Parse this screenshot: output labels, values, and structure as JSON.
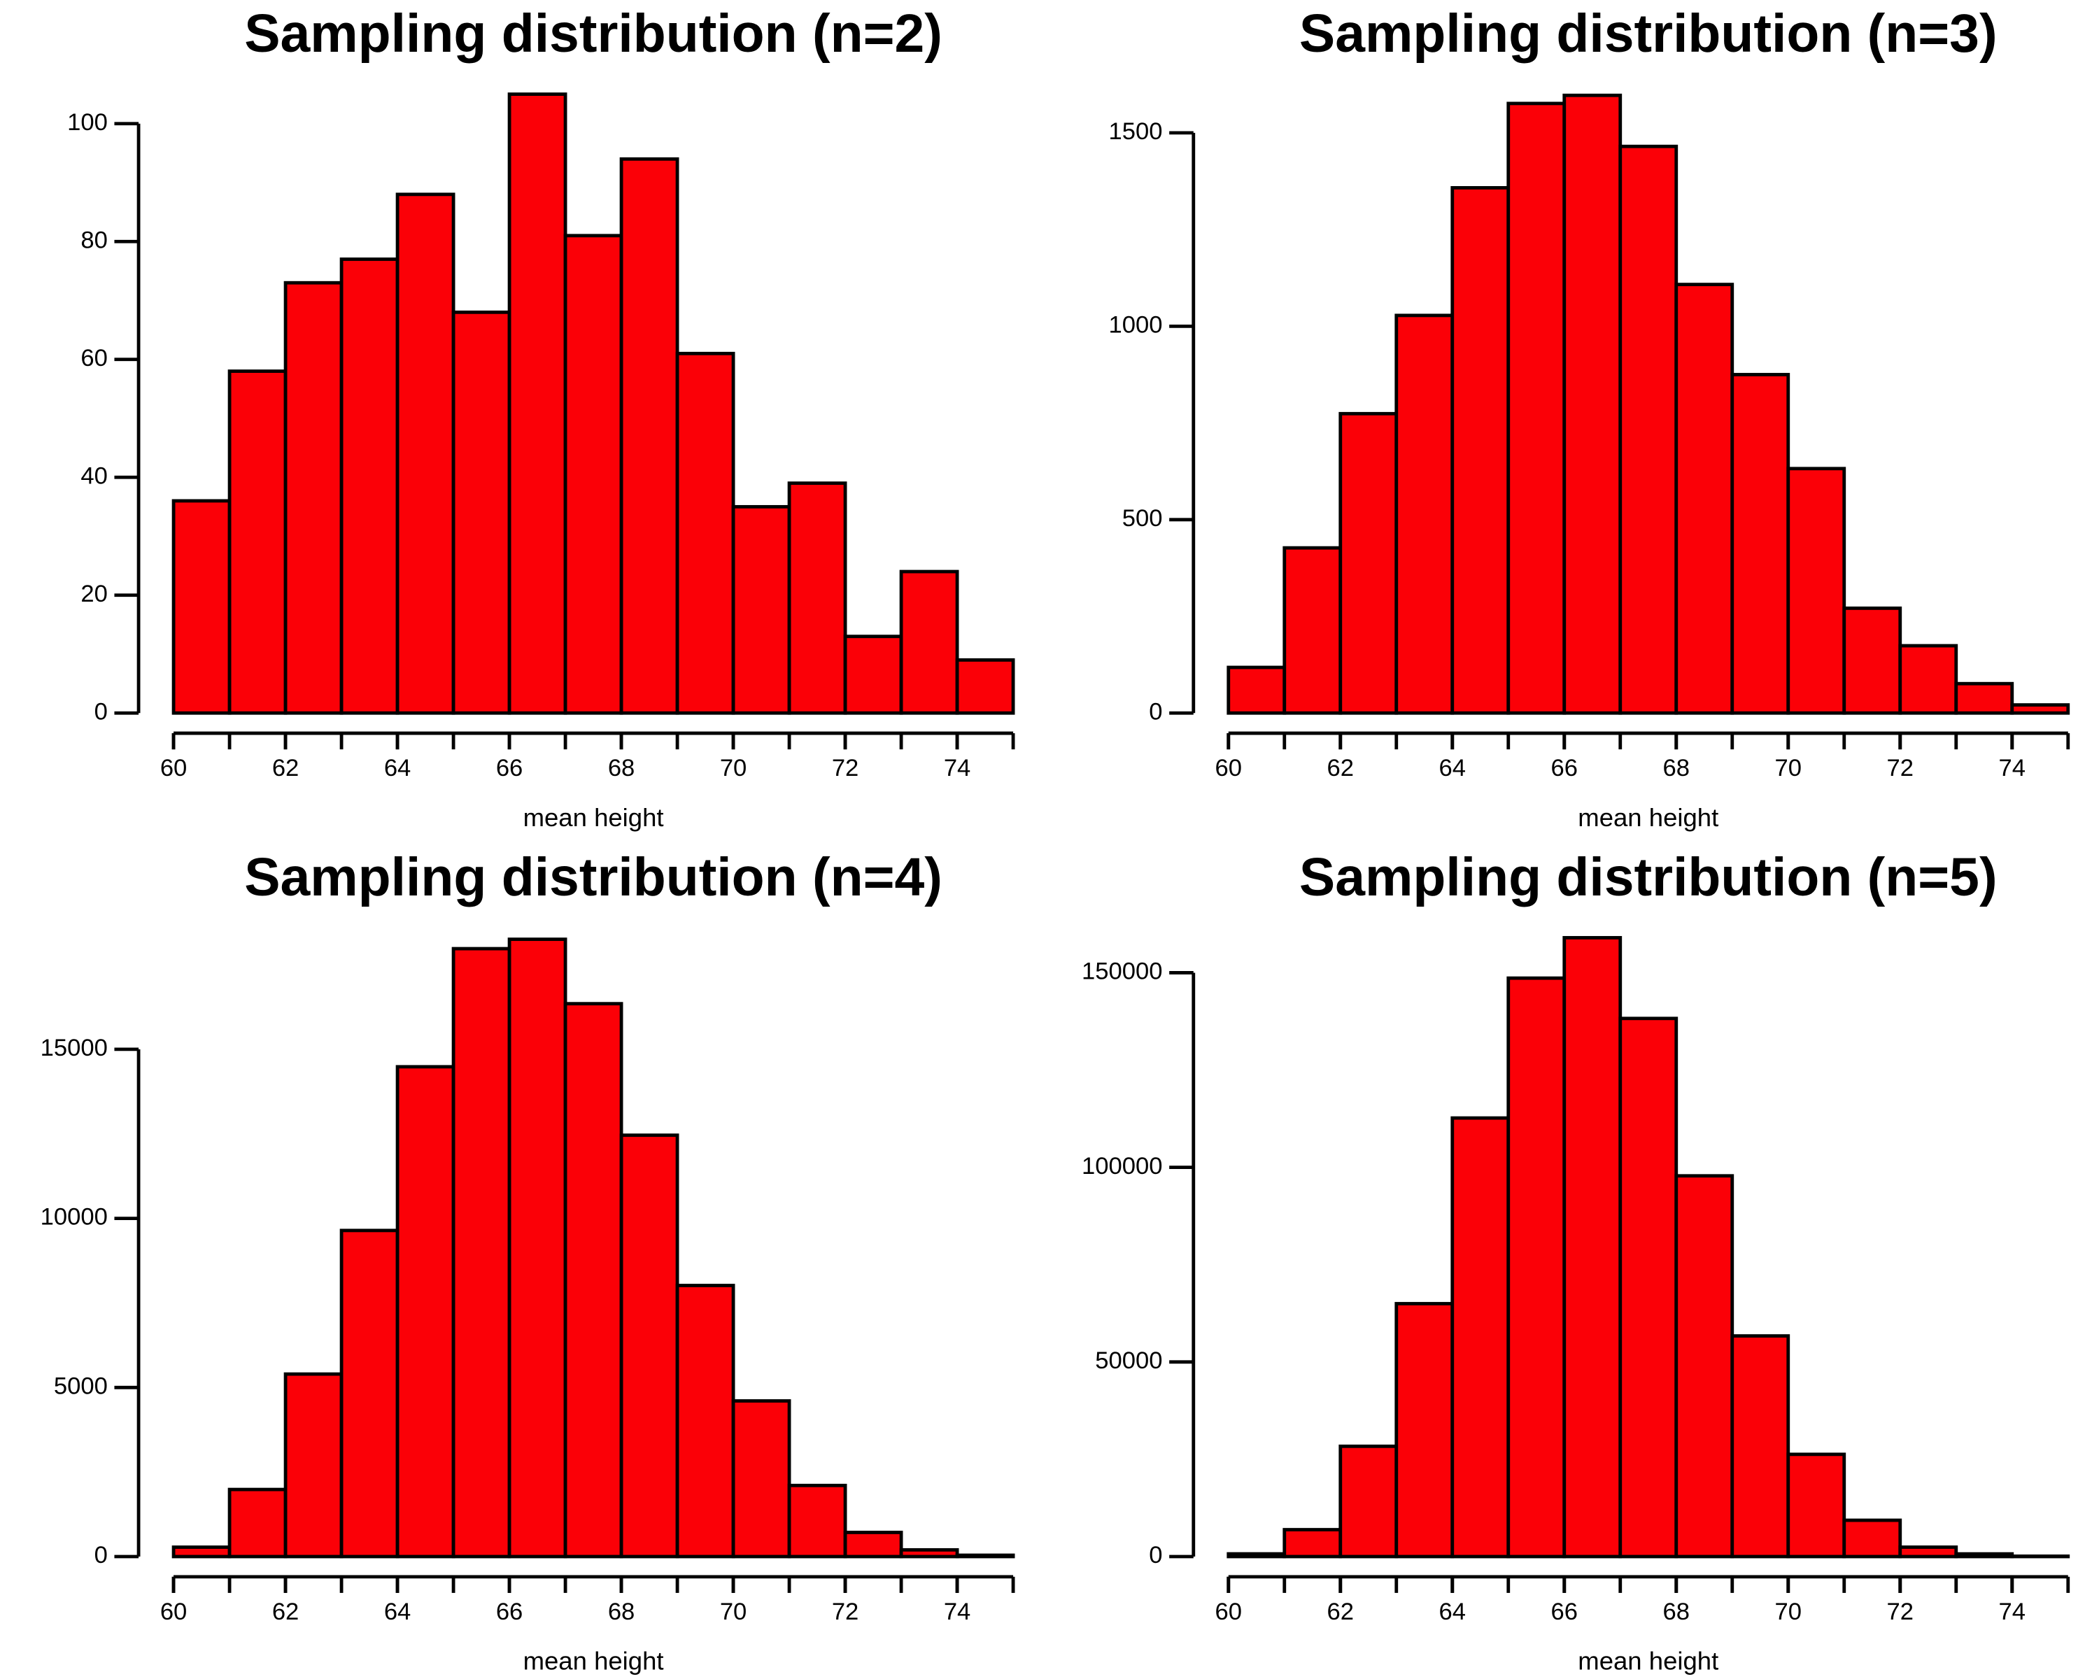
{
  "chart_data": [
    {
      "type": "histogram",
      "title": "Sampling distribution (n=2)",
      "xlabel": "mean height",
      "color": "#fb0007",
      "bins": [
        60,
        61,
        62,
        63,
        64,
        65,
        66,
        67,
        68,
        69,
        70,
        71,
        72,
        73,
        74,
        75
      ],
      "values": [
        36,
        58,
        73,
        77,
        88,
        68,
        105,
        81,
        94,
        61,
        35,
        39,
        13,
        24,
        9
      ],
      "xlim": [
        60,
        75
      ],
      "ylim": [
        0,
        105
      ],
      "xticks": [
        60,
        62,
        64,
        66,
        68,
        70,
        72,
        74
      ],
      "yticks": [
        0,
        20,
        40,
        60,
        80,
        100
      ]
    },
    {
      "type": "histogram",
      "title": "Sampling distribution (n=3)",
      "xlabel": "mean height",
      "color": "#fb0007",
      "bins": [
        60,
        61,
        62,
        63,
        64,
        65,
        66,
        67,
        68,
        69,
        70,
        71,
        72,
        73,
        74,
        75
      ],
      "values": [
        118,
        427,
        774,
        1028,
        1358,
        1576,
        1597,
        1465,
        1108,
        875,
        632,
        271,
        174,
        76,
        21
      ],
      "xlim": [
        60,
        75
      ],
      "ylim": [
        0,
        1600
      ],
      "xticks": [
        60,
        62,
        64,
        66,
        68,
        70,
        72,
        74
      ],
      "yticks": [
        0,
        500,
        1000,
        1500
      ]
    },
    {
      "type": "histogram",
      "title": "Sampling distribution (n=4)",
      "xlabel": "mean height",
      "color": "#fb0007",
      "bins": [
        60,
        61,
        62,
        63,
        64,
        65,
        66,
        67,
        68,
        69,
        70,
        71,
        72,
        73,
        74,
        75
      ],
      "values": [
        278,
        1984,
        5397,
        9643,
        14484,
        17976,
        18254,
        16349,
        12460,
        8016,
        4603,
        2103,
        714,
        198,
        40
      ],
      "xlim": [
        60,
        75
      ],
      "ylim": [
        0,
        18300
      ],
      "xticks": [
        60,
        62,
        64,
        66,
        68,
        70,
        72,
        74
      ],
      "yticks": [
        0,
        5000,
        10000,
        15000
      ]
    },
    {
      "type": "histogram",
      "title": "Sampling distribution (n=5)",
      "xlabel": "mean height",
      "color": "#fb0007",
      "bins": [
        60,
        61,
        62,
        63,
        64,
        65,
        66,
        67,
        68,
        69,
        70,
        71,
        72,
        73,
        74,
        75
      ],
      "values": [
        700,
        6913,
        28340,
        64980,
        112680,
        148620,
        159000,
        138260,
        97820,
        56690,
        26270,
        9333,
        2420,
        691,
        100
      ],
      "xlim": [
        60,
        75
      ],
      "ylim": [
        0,
        159000
      ],
      "xticks": [
        60,
        62,
        64,
        66,
        68,
        70,
        72,
        74
      ],
      "yticks": [
        0,
        50000,
        100000,
        150000
      ]
    }
  ]
}
